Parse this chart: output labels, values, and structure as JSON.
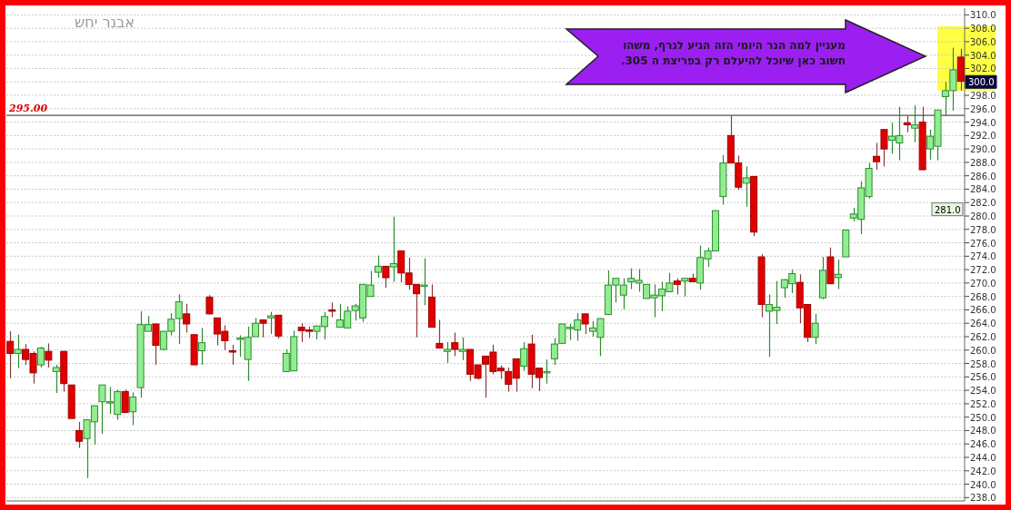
{
  "chart_data": {
    "type": "candlestick",
    "categories": [
      null,
      null,
      null,
      null,
      null,
      null,
      null,
      null,
      null,
      null,
      null,
      null,
      null,
      null,
      null,
      null,
      null,
      null,
      null,
      null,
      null,
      null,
      null,
      null,
      null,
      null,
      null,
      null,
      null,
      null,
      null,
      null,
      null,
      null,
      null,
      null,
      null,
      null,
      null,
      null,
      null,
      null,
      null,
      null,
      null,
      null,
      null,
      null,
      null,
      null,
      null,
      null,
      null,
      null,
      null,
      null,
      null,
      null,
      null,
      null,
      null,
      null,
      null,
      null,
      null,
      null,
      null,
      null,
      null,
      null,
      null,
      null,
      null,
      null,
      null,
      null,
      null,
      null,
      null,
      null,
      null,
      null,
      null,
      null,
      null,
      null,
      null,
      null,
      null,
      null,
      null,
      null,
      null,
      null,
      null,
      null,
      null,
      null,
      null,
      null,
      null,
      null,
      null,
      null,
      null,
      null,
      null,
      null,
      null,
      null,
      null,
      null,
      null,
      null,
      null,
      null,
      null,
      null,
      null,
      null,
      null,
      null,
      null,
      null,
      null
    ],
    "ohlc": [
      [
        261.3,
        262.8,
        255.8,
        259.5
      ],
      [
        259.5,
        262.3,
        257.3,
        260.1
      ],
      [
        260.1,
        260.9,
        257.8,
        258.6
      ],
      [
        259.5,
        259.8,
        255.0,
        256.6
      ],
      [
        257.8,
        260.5,
        257.4,
        260.3
      ],
      [
        259.8,
        261.0,
        257.4,
        258.5
      ],
      [
        256.8,
        257.8,
        253.6,
        257.4
      ],
      [
        259.8,
        259.9,
        253.8,
        255.0
      ],
      [
        254.8,
        254.8,
        249.8,
        249.8
      ],
      [
        248.0,
        249.3,
        245.4,
        246.4
      ],
      [
        246.8,
        249.7,
        240.9,
        249.6
      ],
      [
        249.3,
        251.7,
        245.9,
        251.7
      ],
      [
        252.3,
        254.8,
        247.5,
        254.8
      ],
      [
        252.1,
        254.5,
        250.5,
        252.3
      ],
      [
        250.4,
        254.1,
        249.6,
        253.8
      ],
      [
        253.8,
        254.1,
        250.6,
        250.7
      ],
      [
        250.8,
        253.7,
        248.8,
        253.0
      ],
      [
        254.4,
        265.8,
        252.9,
        263.8
      ],
      [
        262.8,
        265.1,
        262.8,
        263.8
      ],
      [
        263.9,
        263.9,
        257.8,
        260.7
      ],
      [
        260.1,
        262.8,
        260.0,
        262.8
      ],
      [
        262.8,
        265.5,
        262.2,
        264.6
      ],
      [
        264.7,
        268.3,
        260.9,
        267.2
      ],
      [
        265.4,
        266.9,
        262.6,
        263.9
      ],
      [
        262.3,
        262.3,
        257.8,
        257.8
      ],
      [
        259.9,
        263.3,
        257.8,
        261.1
      ],
      [
        267.9,
        268.2,
        265.3,
        265.4
      ],
      [
        264.8,
        264.8,
        260.7,
        262.4
      ],
      [
        262.8,
        263.7,
        260.0,
        261.4
      ],
      [
        259.9,
        260.8,
        257.8,
        259.8
      ],
      [
        261.7,
        262.2,
        259.0,
        261.8
      ],
      [
        258.6,
        263.5,
        255.4,
        261.9
      ],
      [
        262.0,
        264.8,
        262.0,
        264.0
      ],
      [
        264.5,
        264.5,
        261.9,
        264.0
      ],
      [
        264.8,
        265.7,
        262.4,
        265.1
      ],
      [
        265.2,
        265.2,
        261.7,
        262.1
      ],
      [
        256.8,
        260.1,
        256.8,
        259.5
      ],
      [
        256.9,
        262.9,
        256.9,
        262.0
      ],
      [
        263.4,
        264.0,
        261.2,
        262.9
      ],
      [
        263.0,
        263.5,
        261.8,
        262.9
      ],
      [
        262.8,
        263.6,
        261.6,
        263.6
      ],
      [
        263.5,
        265.7,
        261.6,
        265.0
      ],
      [
        266.0,
        267.1,
        264.9,
        265.9
      ],
      [
        263.4,
        266.9,
        263.4,
        264.5
      ],
      [
        263.3,
        266.5,
        263.3,
        265.8
      ],
      [
        265.9,
        266.9,
        264.4,
        266.6
      ],
      [
        264.8,
        269.8,
        264.2,
        269.8
      ],
      [
        268.0,
        271.8,
        268.0,
        269.7
      ],
      [
        271.6,
        274.1,
        270.8,
        272.5
      ],
      [
        272.5,
        272.5,
        269.3,
        270.8
      ],
      [
        272.4,
        279.9,
        270.2,
        272.9
      ],
      [
        274.8,
        274.8,
        270.1,
        271.5
      ],
      [
        271.5,
        273.8,
        269.0,
        269.8
      ],
      [
        269.8,
        269.8,
        261.9,
        268.4
      ],
      [
        269.6,
        273.7,
        266.7,
        269.7
      ],
      [
        267.9,
        269.8,
        263.4,
        263.4
      ],
      [
        261.0,
        264.5,
        260.3,
        260.3
      ],
      [
        259.8,
        261.2,
        258.1,
        260.1
      ],
      [
        261.1,
        262.6,
        259.1,
        260.1
      ],
      [
        259.8,
        261.9,
        258.5,
        260.1
      ],
      [
        260.1,
        260.1,
        255.4,
        256.4
      ],
      [
        257.8,
        257.8,
        255.6,
        255.8
      ],
      [
        259.1,
        259.1,
        252.9,
        257.9
      ],
      [
        259.7,
        260.8,
        256.4,
        256.8
      ],
      [
        257.3,
        257.7,
        255.7,
        256.9
      ],
      [
        256.8,
        257.4,
        253.8,
        254.9
      ],
      [
        258.7,
        258.7,
        253.8,
        255.8
      ],
      [
        257.6,
        261.2,
        256.9,
        260.2
      ],
      [
        260.9,
        262.3,
        254.3,
        256.4
      ],
      [
        257.3,
        257.3,
        253.9,
        255.9
      ],
      [
        256.7,
        258.6,
        255.0,
        256.8
      ],
      [
        258.7,
        261.8,
        257.8,
        260.9
      ],
      [
        261.0,
        263.9,
        261.0,
        263.9
      ],
      [
        263.3,
        263.9,
        261.5,
        263.4
      ],
      [
        263.0,
        265.5,
        261.4,
        264.5
      ],
      [
        265.4,
        265.4,
        262.4,
        263.9
      ],
      [
        262.8,
        264.3,
        262.0,
        263.3
      ],
      [
        261.9,
        264.7,
        259.1,
        264.7
      ],
      [
        265.3,
        271.9,
        265.3,
        269.7
      ],
      [
        269.7,
        270.7,
        267.1,
        270.7
      ],
      [
        268.2,
        270.7,
        266.1,
        269.7
      ],
      [
        270.2,
        272.2,
        269.1,
        270.7
      ],
      [
        270.0,
        272.1,
        268.7,
        270.4
      ],
      [
        267.7,
        269.8,
        267.7,
        269.8
      ],
      [
        267.8,
        269.8,
        264.9,
        268.2
      ],
      [
        268.1,
        270.2,
        265.8,
        269.1
      ],
      [
        268.7,
        271.5,
        268.7,
        270.0
      ],
      [
        270.3,
        270.7,
        268.3,
        269.8
      ],
      [
        270.3,
        270.7,
        268.0,
        270.7
      ],
      [
        270.7,
        271.4,
        270.2,
        270.2
      ],
      [
        270.0,
        275.6,
        269.0,
        273.8
      ],
      [
        273.6,
        275.3,
        272.4,
        274.8
      ],
      [
        274.8,
        280.8,
        274.8,
        280.8
      ],
      [
        282.9,
        289.1,
        281.7,
        287.9
      ],
      [
        292.0,
        295.0,
        287.9,
        287.9
      ],
      [
        287.9,
        289.0,
        283.9,
        284.3
      ],
      [
        284.9,
        287.4,
        281.4,
        285.7
      ],
      [
        285.9,
        285.9,
        277.0,
        277.6
      ],
      [
        273.9,
        274.3,
        264.9,
        266.8
      ],
      [
        265.8,
        268.3,
        259.0,
        266.8
      ],
      [
        265.9,
        270.3,
        263.9,
        266.4
      ],
      [
        269.3,
        270.6,
        267.8,
        270.5
      ],
      [
        269.9,
        272.0,
        268.5,
        271.4
      ],
      [
        270.1,
        271.3,
        264.0,
        266.3
      ],
      [
        266.8,
        266.8,
        261.2,
        261.9
      ],
      [
        261.9,
        265.4,
        260.9,
        264.0
      ],
      [
        267.8,
        273.9,
        267.6,
        271.9
      ],
      [
        273.9,
        275.3,
        269.9,
        269.9
      ],
      [
        270.8,
        273.5,
        269.1,
        271.3
      ],
      [
        273.9,
        277.9,
        273.9,
        277.9
      ],
      [
        279.7,
        281.2,
        279.2,
        280.3
      ],
      [
        279.5,
        285.2,
        277.3,
        284.2
      ],
      [
        282.9,
        287.9,
        282.6,
        287.1
      ],
      [
        288.9,
        290.9,
        286.9,
        288.1
      ],
      [
        292.9,
        292.9,
        287.4,
        290.0
      ],
      [
        291.3,
        293.9,
        289.3,
        291.9
      ],
      [
        290.9,
        296.3,
        288.3,
        292.0
      ],
      [
        293.9,
        294.9,
        292.5,
        293.6
      ],
      [
        293.1,
        296.5,
        291.0,
        293.6
      ],
      [
        294.0,
        296.3,
        286.9,
        286.9
      ],
      [
        290.0,
        292.9,
        288.4,
        291.9
      ],
      [
        290.4,
        295.8,
        288.3,
        295.8
      ],
      [
        297.8,
        300.0,
        294.9,
        298.7
      ],
      [
        298.7,
        305.1,
        295.7,
        301.8
      ],
      [
        303.7,
        304.9,
        298.7,
        300.1
      ]
    ],
    "ylim": [
      237.5,
      311
    ],
    "yticks": [
      {
        "value": 238,
        "label": "238.0"
      },
      {
        "value": 240,
        "label": "240.0"
      },
      {
        "value": 242,
        "label": "242.0"
      },
      {
        "value": 244,
        "label": "244.0"
      },
      {
        "value": 246,
        "label": "246.0"
      },
      {
        "value": 248,
        "label": "248.0"
      },
      {
        "value": 250,
        "label": "250.0"
      },
      {
        "value": 252,
        "label": "252.0"
      },
      {
        "value": 254,
        "label": "254.0"
      },
      {
        "value": 256,
        "label": "256.0"
      },
      {
        "value": 258,
        "label": "258.0"
      },
      {
        "value": 260,
        "label": "260.0"
      },
      {
        "value": 262,
        "label": "262.0"
      },
      {
        "value": 264,
        "label": "264.0"
      },
      {
        "value": 266,
        "label": "266.0"
      },
      {
        "value": 268,
        "label": "268.0"
      },
      {
        "value": 270,
        "label": "270.0"
      },
      {
        "value": 272,
        "label": "272.0"
      },
      {
        "value": 274,
        "label": "274.0"
      },
      {
        "value": 276,
        "label": "276.0"
      },
      {
        "value": 278,
        "label": "278.0"
      },
      {
        "value": 280,
        "label": "280.0"
      },
      {
        "value": 282,
        "label": "282.0"
      },
      {
        "value": 284,
        "label": "284.0"
      },
      {
        "value": 286,
        "label": "286.0"
      },
      {
        "value": 288,
        "label": "288.0"
      },
      {
        "value": 290,
        "label": "290.0"
      },
      {
        "value": 292,
        "label": "292.0"
      },
      {
        "value": 294,
        "label": "294.0"
      },
      {
        "value": 296,
        "label": "296.0"
      },
      {
        "value": 298,
        "label": "298.0"
      },
      {
        "value": 300,
        "label": null
      },
      {
        "value": 302,
        "label": "302.0"
      },
      {
        "value": 304,
        "label": "304.0"
      },
      {
        "value": 306,
        "label": "306.0"
      },
      {
        "value": 308,
        "label": "308.0"
      },
      {
        "value": 310,
        "label": "310.0"
      }
    ],
    "tick_labels": "y",
    "grid": "y",
    "ref_lines": [
      {
        "axis": "y",
        "value": 295,
        "label": "295.00",
        "color": "#555555"
      }
    ],
    "annotations": [
      "אבנר יחש",
      "מעניין למה הנר היומי הזה הגיע לגרף, משהו חשוב כאן  שיוכל להיעלם רק בפריצת ה 305.",
      {
        "text": "300.0",
        "y": 300
      },
      {
        "text": "281.0",
        "y": 281
      }
    ]
  }
}
